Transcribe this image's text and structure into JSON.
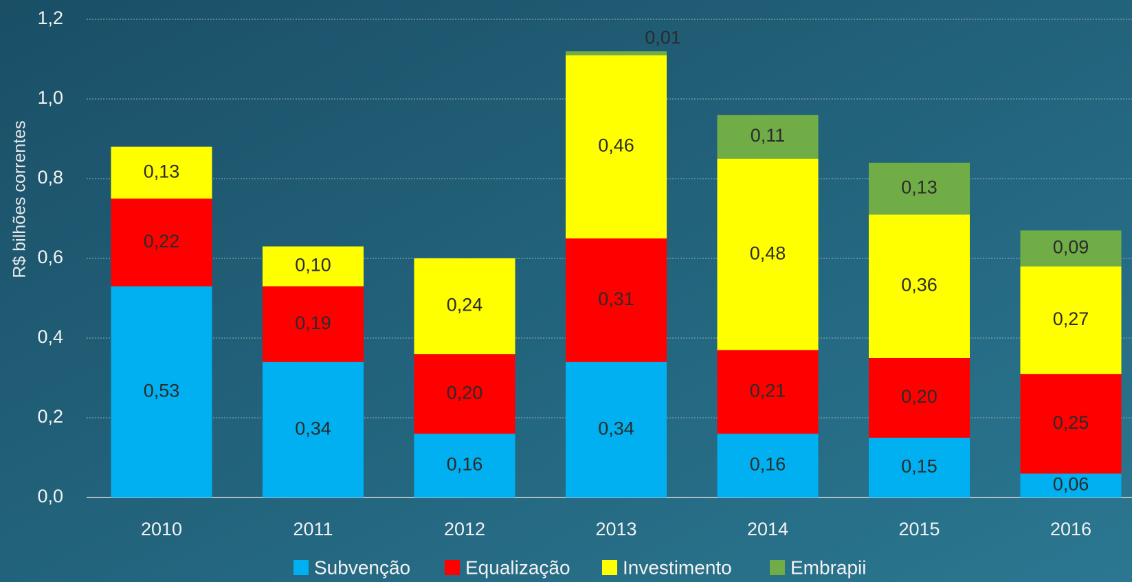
{
  "chart_data": {
    "type": "stacked_bar",
    "y_axis_label": "R$ bilhões correntes",
    "categories": [
      "2010",
      "2011",
      "2012",
      "2013",
      "2014",
      "2015",
      "2016"
    ],
    "series": [
      {
        "name": "Subvenção",
        "color": "#00b0f0",
        "values": [
          0.53,
          0.34,
          0.16,
          0.34,
          0.16,
          0.15,
          0.06
        ],
        "value_labels": [
          "0,53",
          "0,34",
          "0,16",
          "0,34",
          "0,16",
          "0,15",
          "0,06"
        ]
      },
      {
        "name": "Equalização",
        "color": "#ff0000",
        "values": [
          0.22,
          0.19,
          0.2,
          0.31,
          0.21,
          0.2,
          0.25
        ],
        "value_labels": [
          "0,22",
          "0,19",
          "0,20",
          "0,31",
          "0,21",
          "0,20",
          "0,25"
        ]
      },
      {
        "name": "Investimento",
        "color": "#ffff00",
        "values": [
          0.13,
          0.1,
          0.24,
          0.46,
          0.48,
          0.36,
          0.27
        ],
        "value_labels": [
          "0,13",
          "0,10",
          "0,24",
          "0,46",
          "0,48",
          "0,36",
          "0,27"
        ]
      },
      {
        "name": "Embrapii",
        "color": "#70ad47",
        "values": [
          null,
          null,
          null,
          0.01,
          0.11,
          0.13,
          0.09
        ],
        "value_labels": [
          null,
          null,
          null,
          "0,01",
          "0,11",
          "0,13",
          "0,09"
        ]
      }
    ],
    "ylim": [
      0,
      1.2
    ],
    "yticks": [
      {
        "value": 0,
        "label": "0,0"
      },
      {
        "value": 0.2,
        "label": "0,2"
      },
      {
        "value": 0.4,
        "label": "0,4"
      },
      {
        "value": 0.6,
        "label": "0,6"
      },
      {
        "value": 0.8,
        "label": "0,8"
      },
      {
        "value": 1.0,
        "label": "1,0"
      },
      {
        "value": 1.2,
        "label": "1,2"
      }
    ],
    "grid": true,
    "legend": "bottom"
  }
}
